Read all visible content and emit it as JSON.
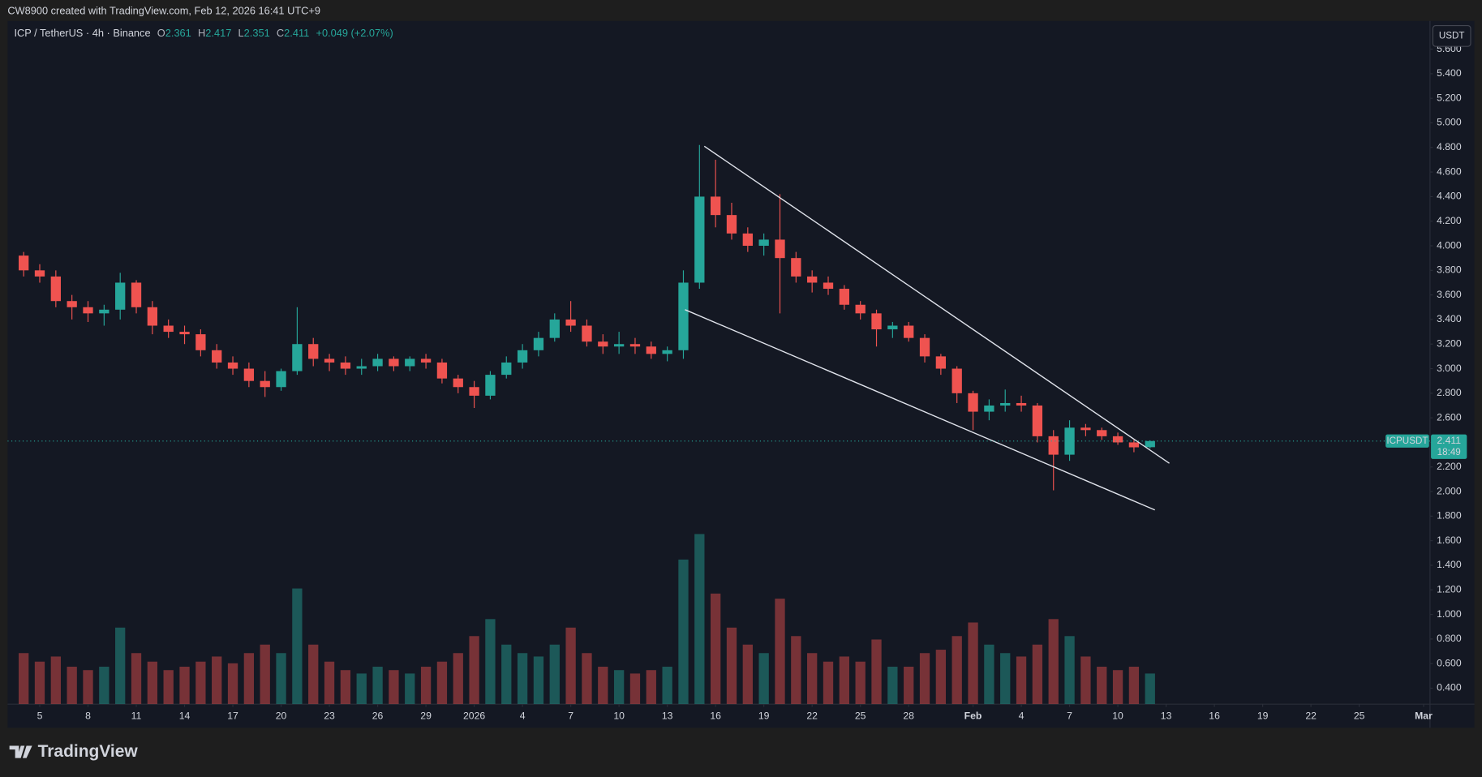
{
  "header": {
    "credit": "CW8900 created with TradingView.com, Feb 12, 2026 16:41 UTC+9"
  },
  "chart_data": {
    "type": "candlestick",
    "title": "ICP / TetherUS · 4h · Binance",
    "symbol": "ICPUSDT",
    "currency": "USDT",
    "ohlc_labels": [
      "O",
      "H",
      "L",
      "C"
    ],
    "change": "+0.049 (+2.07%)",
    "countdown": "18:49",
    "up_color": "#26a69a",
    "down_color": "#ef5350",
    "grid": false,
    "last_price_line": true,
    "x": [
      0,
      1,
      2,
      3,
      4,
      5,
      6,
      7,
      8,
      9,
      10,
      11,
      12,
      13,
      14,
      15,
      16,
      17,
      18,
      19,
      20,
      21,
      22,
      23,
      24,
      25,
      26,
      27,
      28,
      29,
      30,
      31,
      32,
      33,
      34,
      35,
      36,
      37,
      38,
      39,
      40,
      41,
      42,
      43,
      44,
      45,
      46,
      47,
      48,
      49,
      50,
      51,
      52,
      53,
      54,
      55,
      56,
      57,
      58,
      59,
      60,
      61,
      62,
      63,
      64,
      65,
      66,
      67,
      68,
      69,
      70
    ],
    "open": [
      3.92,
      3.8,
      3.75,
      3.55,
      3.5,
      3.45,
      3.48,
      3.7,
      3.5,
      3.35,
      3.3,
      3.28,
      3.15,
      3.05,
      3.0,
      2.9,
      2.85,
      2.98,
      3.2,
      3.08,
      3.05,
      3.0,
      3.02,
      3.08,
      3.02,
      3.08,
      3.05,
      2.92,
      2.85,
      2.78,
      2.95,
      3.05,
      3.15,
      3.25,
      3.4,
      3.35,
      3.22,
      3.18,
      3.2,
      3.18,
      3.12,
      3.15,
      3.7,
      4.4,
      4.25,
      4.1,
      4.0,
      4.05,
      3.9,
      3.75,
      3.7,
      3.65,
      3.52,
      3.45,
      3.32,
      3.35,
      3.25,
      3.1,
      3.0,
      2.8,
      2.65,
      2.7,
      2.72,
      2.7,
      2.45,
      2.3,
      2.52,
      2.5,
      2.45,
      2.4,
      2.361
    ],
    "high": [
      3.95,
      3.85,
      3.8,
      3.6,
      3.55,
      3.52,
      3.78,
      3.72,
      3.55,
      3.4,
      3.35,
      3.32,
      3.2,
      3.1,
      3.05,
      2.98,
      3.0,
      3.5,
      3.25,
      3.12,
      3.1,
      3.08,
      3.12,
      3.1,
      3.1,
      3.12,
      3.08,
      2.95,
      2.9,
      2.98,
      3.1,
      3.2,
      3.3,
      3.45,
      3.55,
      3.4,
      3.28,
      3.3,
      3.25,
      3.22,
      3.18,
      3.8,
      4.82,
      4.7,
      4.35,
      4.15,
      4.1,
      4.42,
      3.95,
      3.8,
      3.75,
      3.68,
      3.55,
      3.48,
      3.38,
      3.38,
      3.28,
      3.12,
      3.02,
      2.82,
      2.75,
      2.83,
      2.78,
      2.72,
      2.5,
      2.58,
      2.55,
      2.52,
      2.48,
      2.42,
      2.417
    ],
    "low": [
      3.75,
      3.7,
      3.5,
      3.4,
      3.38,
      3.35,
      3.4,
      3.45,
      3.28,
      3.25,
      3.2,
      3.1,
      3.0,
      2.95,
      2.85,
      2.77,
      2.82,
      2.95,
      3.02,
      2.98,
      2.95,
      2.95,
      2.98,
      2.98,
      2.98,
      3.0,
      2.88,
      2.8,
      2.68,
      2.75,
      2.92,
      3.0,
      3.1,
      3.22,
      3.3,
      3.18,
      3.12,
      3.12,
      3.12,
      3.08,
      3.06,
      3.08,
      3.65,
      4.15,
      4.05,
      3.95,
      3.92,
      3.45,
      3.7,
      3.62,
      3.6,
      3.48,
      3.4,
      3.18,
      3.25,
      3.22,
      3.05,
      2.95,
      2.72,
      2.5,
      2.58,
      2.65,
      2.65,
      2.4,
      2.01,
      2.25,
      2.45,
      2.42,
      2.38,
      2.32,
      2.351
    ],
    "close": [
      3.8,
      3.75,
      3.55,
      3.5,
      3.45,
      3.48,
      3.7,
      3.5,
      3.35,
      3.3,
      3.28,
      3.15,
      3.05,
      3.0,
      2.9,
      2.85,
      2.98,
      3.2,
      3.08,
      3.05,
      3.0,
      3.02,
      3.08,
      3.02,
      3.08,
      3.05,
      2.92,
      2.85,
      2.78,
      2.95,
      3.05,
      3.15,
      3.25,
      3.4,
      3.35,
      3.22,
      3.18,
      3.2,
      3.18,
      3.12,
      3.15,
      3.7,
      4.4,
      4.25,
      4.1,
      4.0,
      4.05,
      3.9,
      3.75,
      3.7,
      3.65,
      3.52,
      3.45,
      3.32,
      3.35,
      3.25,
      3.1,
      3.0,
      2.8,
      2.65,
      2.7,
      2.72,
      2.7,
      2.45,
      2.3,
      2.52,
      2.5,
      2.45,
      2.4,
      2.36,
      2.411
    ],
    "volume": [
      30,
      25,
      28,
      22,
      20,
      22,
      45,
      30,
      25,
      20,
      22,
      25,
      28,
      24,
      30,
      35,
      30,
      68,
      35,
      25,
      20,
      18,
      22,
      20,
      18,
      22,
      25,
      30,
      40,
      50,
      35,
      30,
      28,
      35,
      45,
      30,
      22,
      20,
      18,
      20,
      22,
      85,
      100,
      65,
      45,
      35,
      30,
      62,
      40,
      30,
      25,
      28,
      25,
      38,
      22,
      22,
      30,
      32,
      40,
      48,
      35,
      30,
      28,
      35,
      50,
      40,
      28,
      22,
      20,
      22,
      18
    ],
    "trendlines": [
      {
        "x": [
          42.3,
          71.2
        ],
        "y": [
          4.81,
          2.23
        ]
      },
      {
        "x": [
          41.1,
          70.3
        ],
        "y": [
          3.48,
          1.85
        ]
      }
    ],
    "xlim": [
      -1.0,
      87.4
    ],
    "ylim": [
      0.27,
      5.83
    ],
    "xticks": [
      {
        "value": 1,
        "label": "5"
      },
      {
        "value": 4,
        "label": "8"
      },
      {
        "value": 7,
        "label": "11"
      },
      {
        "value": 10,
        "label": "14"
      },
      {
        "value": 13,
        "label": "17"
      },
      {
        "value": 16,
        "label": "20"
      },
      {
        "value": 19,
        "label": "23"
      },
      {
        "value": 22,
        "label": "26"
      },
      {
        "value": 25,
        "label": "29"
      },
      {
        "value": 28,
        "label": "2026"
      },
      {
        "value": 31,
        "label": "4"
      },
      {
        "value": 34,
        "label": "7"
      },
      {
        "value": 37,
        "label": "10"
      },
      {
        "value": 40,
        "label": "13"
      },
      {
        "value": 43,
        "label": "16"
      },
      {
        "value": 46,
        "label": "19"
      },
      {
        "value": 49,
        "label": "22"
      },
      {
        "value": 52,
        "label": "25"
      },
      {
        "value": 55,
        "label": "28"
      },
      {
        "value": 59,
        "label": "Feb"
      },
      {
        "value": 62,
        "label": "4"
      },
      {
        "value": 65,
        "label": "7"
      },
      {
        "value": 68,
        "label": "10"
      },
      {
        "value": 71,
        "label": "13"
      },
      {
        "value": 74,
        "label": "16"
      },
      {
        "value": 77,
        "label": "19"
      },
      {
        "value": 80,
        "label": "22"
      },
      {
        "value": 83,
        "label": "25"
      },
      {
        "value": 87,
        "label": "Mar"
      }
    ],
    "yticks": [
      {
        "value": 0.4,
        "label": "0.400"
      },
      {
        "value": 0.6,
        "label": "0.600"
      },
      {
        "value": 0.8,
        "label": "0.800"
      },
      {
        "value": 1.0,
        "label": "1.000"
      },
      {
        "value": 1.2,
        "label": "1.200"
      },
      {
        "value": 1.4,
        "label": "1.400"
      },
      {
        "value": 1.6,
        "label": "1.600"
      },
      {
        "value": 1.8,
        "label": "1.800"
      },
      {
        "value": 2.0,
        "label": "2.000"
      },
      {
        "value": 2.2,
        "label": "2.200"
      },
      {
        "value": 2.4,
        "label": "2.400"
      },
      {
        "value": 2.6,
        "label": "2.600"
      },
      {
        "value": 2.8,
        "label": "2.800"
      },
      {
        "value": 3.0,
        "label": "3.000"
      },
      {
        "value": 3.2,
        "label": "3.200"
      },
      {
        "value": 3.4,
        "label": "3.400"
      },
      {
        "value": 3.6,
        "label": "3.600"
      },
      {
        "value": 3.8,
        "label": "3.800"
      },
      {
        "value": 4.0,
        "label": "4.000"
      },
      {
        "value": 4.2,
        "label": "4.200"
      },
      {
        "value": 4.4,
        "label": "4.400"
      },
      {
        "value": 4.6,
        "label": "4.600"
      },
      {
        "value": 4.8,
        "label": "4.800"
      },
      {
        "value": 5.0,
        "label": "5.000"
      },
      {
        "value": 5.2,
        "label": "5.200"
      },
      {
        "value": 5.4,
        "label": "5.400"
      },
      {
        "value": 5.6,
        "label": "5.600"
      }
    ]
  },
  "footer": {
    "brand": "TradingView"
  }
}
